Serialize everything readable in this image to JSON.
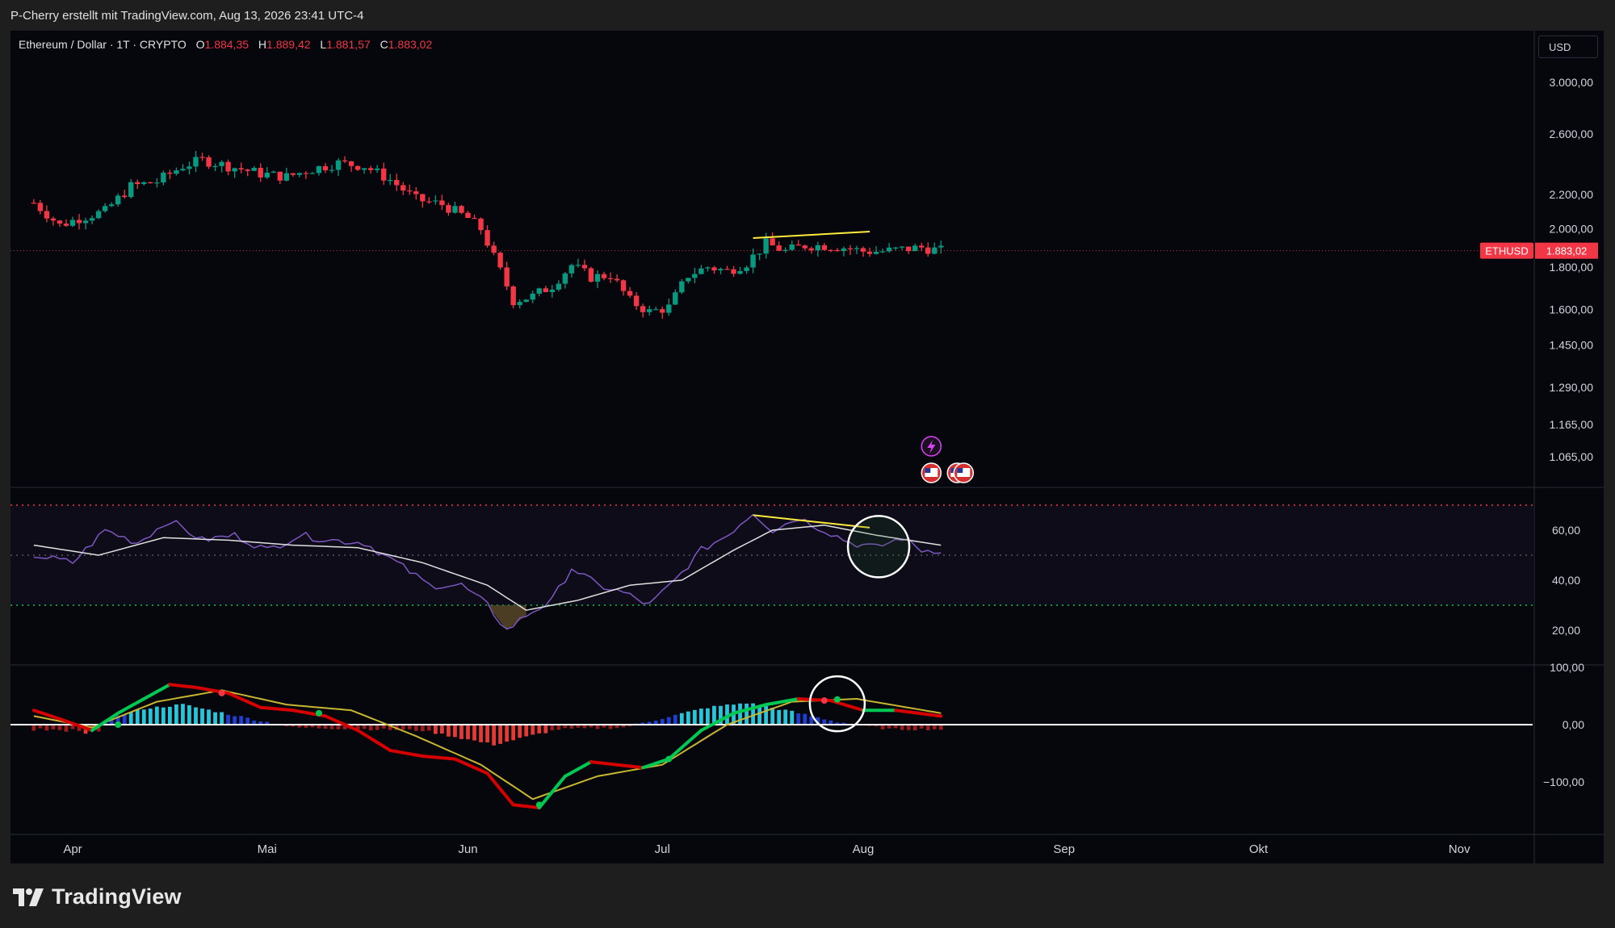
{
  "credit": "P-Cherry erstellt mit TradingView.com, Aug 13, 2026 23:41 UTC-4",
  "legend": {
    "symbol": "Ethereum / Dollar · 1T · CRYPTO",
    "o_label": "O",
    "o_value": "1.884,35",
    "h_label": "H",
    "h_value": "1.889,42",
    "l_label": "L",
    "l_value": "1.881,57",
    "c_label": "C",
    "c_value": "1.883,02"
  },
  "currency_button": "USD",
  "price_tag": {
    "symbol": "ETHUSD",
    "value": "1.883,02"
  },
  "brand": "TradingView",
  "colors": {
    "up": "#089981",
    "down": "#f23645",
    "background": "#06070c",
    "rsi": "#7e57c2",
    "macd_fast": "#00c853",
    "macd_slow": "#f23645",
    "signal": "#c8b632",
    "annotation": "#ffeb3b"
  },
  "chart_data": [
    {
      "type": "candlestick",
      "title": "Ethereum / Dollar · 1T · CRYPTO",
      "x_tick_labels": [
        "Apr",
        "Mai",
        "Jun",
        "Jul",
        "Aug",
        "Sep",
        "Okt",
        "Nov"
      ],
      "y_tick_labels": [
        "3.000,00",
        "2.600,00",
        "2.200,00",
        "2.000,00",
        "1.800,00",
        "1.600,00",
        "1.450,00",
        "1.290,00",
        "1.165,00",
        "1.065,00"
      ],
      "y_scale": "log",
      "last_price": 1883.02,
      "series_close_approx": [
        {
          "x": "2026-03-26",
          "y": 2150
        },
        {
          "x": "2026-03-30",
          "y": 2020
        },
        {
          "x": "2026-04-02",
          "y": 2060
        },
        {
          "x": "2026-04-06",
          "y": 2100
        },
        {
          "x": "2026-04-10",
          "y": 2250
        },
        {
          "x": "2026-04-14",
          "y": 2280
        },
        {
          "x": "2026-04-18",
          "y": 2380
        },
        {
          "x": "2026-04-21",
          "y": 2420
        },
        {
          "x": "2026-04-25",
          "y": 2380
        },
        {
          "x": "2026-04-30",
          "y": 2330
        },
        {
          "x": "2026-05-04",
          "y": 2310
        },
        {
          "x": "2026-05-08",
          "y": 2360
        },
        {
          "x": "2026-05-12",
          "y": 2400
        },
        {
          "x": "2026-05-16",
          "y": 2380
        },
        {
          "x": "2026-05-20",
          "y": 2290
        },
        {
          "x": "2026-05-24",
          "y": 2170
        },
        {
          "x": "2026-05-28",
          "y": 2140
        },
        {
          "x": "2026-06-01",
          "y": 2060
        },
        {
          "x": "2026-06-03",
          "y": 2000
        },
        {
          "x": "2026-06-05",
          "y": 1850
        },
        {
          "x": "2026-06-08",
          "y": 1640
        },
        {
          "x": "2026-06-11",
          "y": 1660
        },
        {
          "x": "2026-06-14",
          "y": 1710
        },
        {
          "x": "2026-06-17",
          "y": 1810
        },
        {
          "x": "2026-06-20",
          "y": 1750
        },
        {
          "x": "2026-06-23",
          "y": 1760
        },
        {
          "x": "2026-06-26",
          "y": 1640
        },
        {
          "x": "2026-06-29",
          "y": 1590
        },
        {
          "x": "2026-07-02",
          "y": 1610
        },
        {
          "x": "2026-07-05",
          "y": 1760
        },
        {
          "x": "2026-07-08",
          "y": 1800
        },
        {
          "x": "2026-07-11",
          "y": 1780
        },
        {
          "x": "2026-07-14",
          "y": 1820
        },
        {
          "x": "2026-07-17",
          "y": 1920
        },
        {
          "x": "2026-07-20",
          "y": 1880
        },
        {
          "x": "2026-07-23",
          "y": 1910
        },
        {
          "x": "2026-07-26",
          "y": 1910
        },
        {
          "x": "2026-07-29",
          "y": 1900
        },
        {
          "x": "2026-08-01",
          "y": 1880
        },
        {
          "x": "2026-08-04",
          "y": 1880
        },
        {
          "x": "2026-08-07",
          "y": 1890
        },
        {
          "x": "2026-08-10",
          "y": 1900
        },
        {
          "x": "2026-08-13",
          "y": 1883
        }
      ],
      "annotations": [
        {
          "type": "trendline",
          "color": "#ffeb3b",
          "from": {
            "x": "2026-07-15",
            "y": 1950
          },
          "to": {
            "x": "2026-08-02",
            "y": 1985
          }
        }
      ]
    },
    {
      "type": "line",
      "y_tick_labels": [
        "60,00",
        "40,00",
        "20,00"
      ],
      "ylim": [
        10,
        80
      ],
      "bands": [
        70,
        50,
        30
      ],
      "series": [
        {
          "x": [
            "2026-03-26",
            "2026-04-01",
            "2026-04-06",
            "2026-04-11",
            "2026-04-16",
            "2026-04-21",
            "2026-04-26",
            "2026-05-01",
            "2026-05-06",
            "2026-05-11",
            "2026-05-16",
            "2026-05-21",
            "2026-05-26",
            "2026-05-31",
            "2026-06-04",
            "2026-06-07",
            "2026-06-10",
            "2026-06-14",
            "2026-06-17",
            "2026-06-21",
            "2026-06-25",
            "2026-06-29",
            "2026-07-03",
            "2026-07-07",
            "2026-07-11",
            "2026-07-15",
            "2026-07-18",
            "2026-07-22",
            "2026-07-26",
            "2026-07-30",
            "2026-08-03",
            "2026-08-07",
            "2026-08-10",
            "2026-08-13"
          ],
          "values": [
            50,
            47,
            60,
            55,
            64,
            56,
            58,
            52,
            58,
            56,
            55,
            47,
            38,
            38,
            30,
            20,
            26,
            32,
            45,
            38,
            35,
            30,
            40,
            52,
            58,
            67,
            60,
            65,
            60,
            55,
            53,
            57,
            52,
            52
          ]
        },
        {
          "x": [
            "2026-03-26",
            "2026-04-05",
            "2026-04-15",
            "2026-04-25",
            "2026-05-05",
            "2026-05-15",
            "2026-05-25",
            "2026-06-04",
            "2026-06-10",
            "2026-06-18",
            "2026-06-26",
            "2026-07-04",
            "2026-07-12",
            "2026-07-18",
            "2026-07-26",
            "2026-08-03",
            "2026-08-13"
          ],
          "values": [
            54,
            50,
            57,
            56,
            54,
            53,
            47,
            38,
            28,
            32,
            38,
            40,
            52,
            60,
            62,
            58,
            54
          ]
        }
      ],
      "annotations": [
        {
          "type": "trendline",
          "color": "#ffeb3b",
          "from": {
            "x": "2026-07-15",
            "y": 66
          },
          "to": {
            "x": "2026-08-02",
            "y": 61
          }
        },
        {
          "type": "circle",
          "x": "2026-08-03",
          "y": 56
        }
      ]
    },
    {
      "type": "line",
      "y_tick_labels": [
        "100,00",
        "0,00",
        "−100,00"
      ],
      "ylim": [
        -170,
        110
      ],
      "series": [
        {
          "x": [
            "2026-03-26",
            "2026-03-30",
            "2026-04-04",
            "2026-04-08",
            "2026-04-12",
            "2026-04-16",
            "2026-04-20",
            "2026-04-25",
            "2026-04-30",
            "2026-05-05",
            "2026-05-10",
            "2026-05-15",
            "2026-05-20",
            "2026-05-25",
            "2026-05-30",
            "2026-06-04",
            "2026-06-08",
            "2026-06-12",
            "2026-06-16",
            "2026-06-20",
            "2026-06-24",
            "2026-06-28",
            "2026-07-02",
            "2026-07-07",
            "2026-07-12",
            "2026-07-17",
            "2026-07-22",
            "2026-07-27",
            "2026-08-01",
            "2026-08-06",
            "2026-08-13"
          ],
          "values": [
            25,
            10,
            -10,
            20,
            45,
            70,
            65,
            55,
            30,
            25,
            15,
            -10,
            -45,
            -55,
            -60,
            -85,
            -140,
            -145,
            -90,
            -65,
            -70,
            -75,
            -60,
            -10,
            20,
            35,
            45,
            42,
            25,
            25,
            15
          ]
        },
        {
          "x": [
            "2026-03-26",
            "2026-04-04",
            "2026-04-14",
            "2026-04-24",
            "2026-05-04",
            "2026-05-14",
            "2026-05-24",
            "2026-06-03",
            "2026-06-11",
            "2026-06-21",
            "2026-07-01",
            "2026-07-11",
            "2026-07-21",
            "2026-07-31",
            "2026-08-13"
          ],
          "values": [
            15,
            -5,
            40,
            60,
            35,
            25,
            -20,
            -70,
            -130,
            -90,
            -70,
            0,
            40,
            45,
            20
          ]
        },
        {
          "x": [
            "2026-04-06",
            "2026-04-12",
            "2026-04-18",
            "2026-05-05",
            "2026-05-25",
            "2026-06-05",
            "2026-06-15",
            "2026-06-25",
            "2026-07-08",
            "2026-07-14",
            "2026-07-20",
            "2026-07-28",
            "2026-08-05"
          ],
          "values": [
            8,
            28,
            35,
            -5,
            -10,
            -35,
            -8,
            -5,
            30,
            38,
            25,
            5,
            -8
          ]
        }
      ],
      "annotations": [
        {
          "type": "circle",
          "x": "2026-07-28",
          "y": 42
        }
      ]
    }
  ]
}
